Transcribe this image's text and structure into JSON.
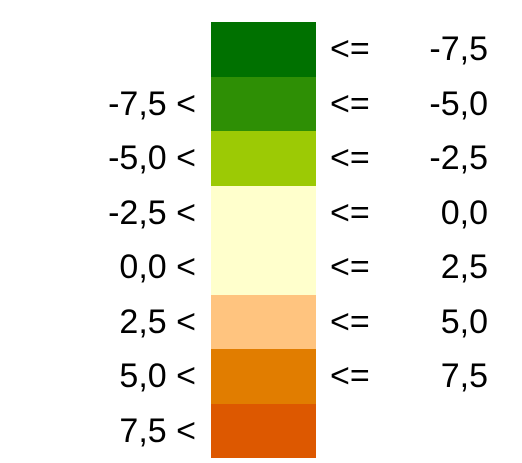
{
  "legend": {
    "operator": "<=",
    "rows": [
      {
        "lower": "",
        "upper": "-7,5",
        "color": "#007100"
      },
      {
        "lower": "-7,5 <",
        "upper": "-5,0",
        "color": "#2E8F05"
      },
      {
        "lower": "-5,0 <",
        "upper": "-2,5",
        "color": "#9CCA05"
      },
      {
        "lower": "-2,5 <",
        "upper": "0,0",
        "color": "#FFFFCC"
      },
      {
        "lower": "0,0 <",
        "upper": "2,5",
        "color": "#FFFFCC"
      },
      {
        "lower": "2,5 <",
        "upper": "5,0",
        "color": "#FFC47F"
      },
      {
        "lower": "5,0 <",
        "upper": "7,5",
        "color": "#E17D00"
      },
      {
        "lower": "7,5 <",
        "upper": "",
        "color": "#DD5800"
      }
    ]
  }
}
